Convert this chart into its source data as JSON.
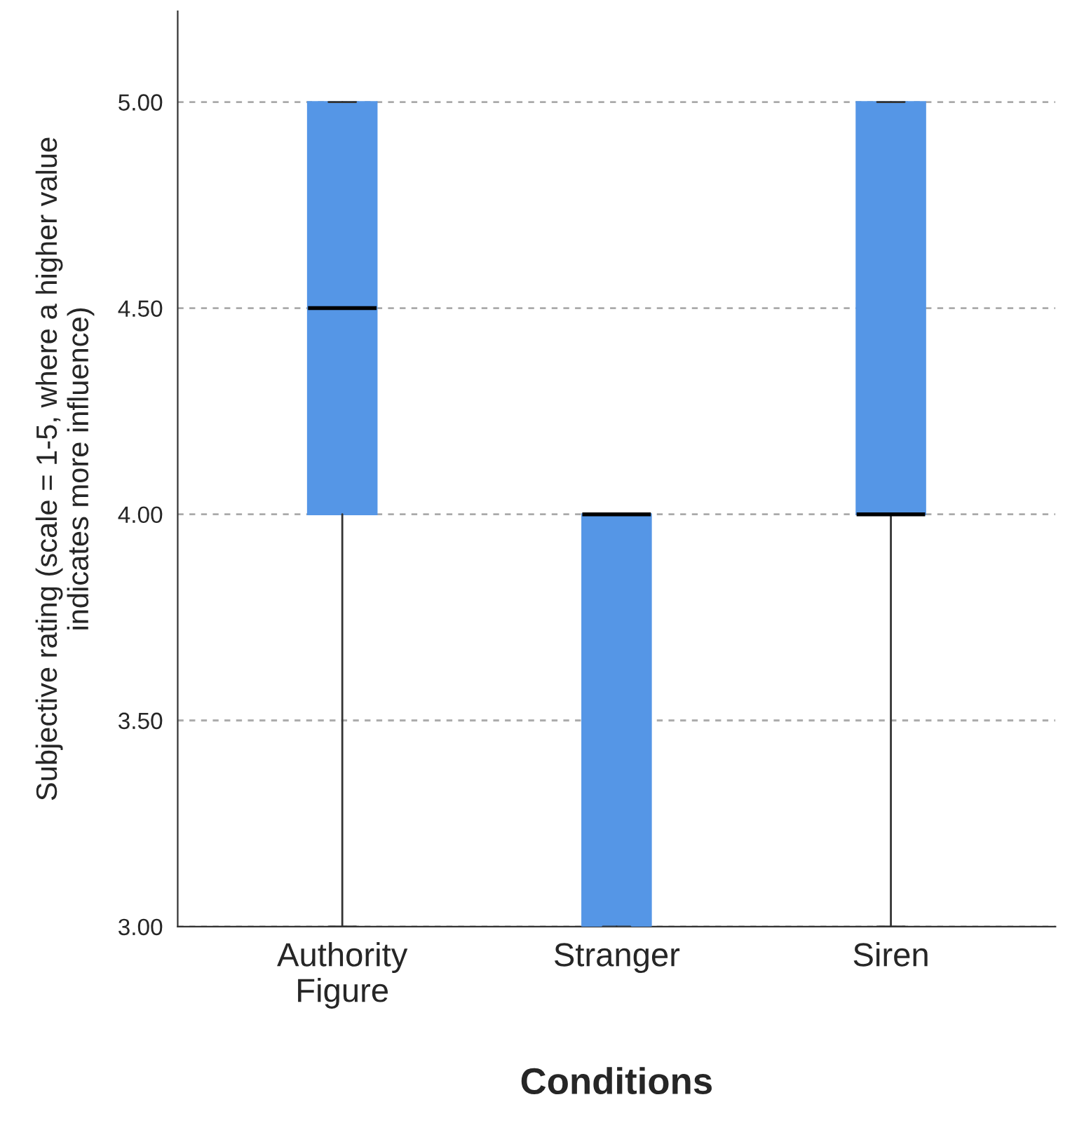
{
  "chart_data": {
    "type": "box",
    "xlabel": "Conditions",
    "ylabel": "Subjective rating (scale = 1-5, where a higher value\nindicates more influence)",
    "categories": [
      "Authority\nFigure",
      "Stranger",
      "Siren"
    ],
    "boxes": [
      {
        "low": 3,
        "q1": 4,
        "median": 4.5,
        "q3": 5,
        "high": 5
      },
      {
        "low": 3,
        "q1": 3,
        "median": 4,
        "q3": 4,
        "high": 4
      },
      {
        "low": 3,
        "q1": 4,
        "median": 4,
        "q3": 5,
        "high": 5
      }
    ],
    "color": "#5596e6",
    "ylim": [
      3,
      5.22
    ],
    "yticks": [
      {
        "value": 3,
        "label": "3.00"
      },
      {
        "value": 3.5,
        "label": "3.50"
      },
      {
        "value": 4,
        "label": "4.00"
      },
      {
        "value": 4.5,
        "label": "4.50"
      },
      {
        "value": 5,
        "label": "5.00"
      }
    ],
    "grid": "y"
  }
}
